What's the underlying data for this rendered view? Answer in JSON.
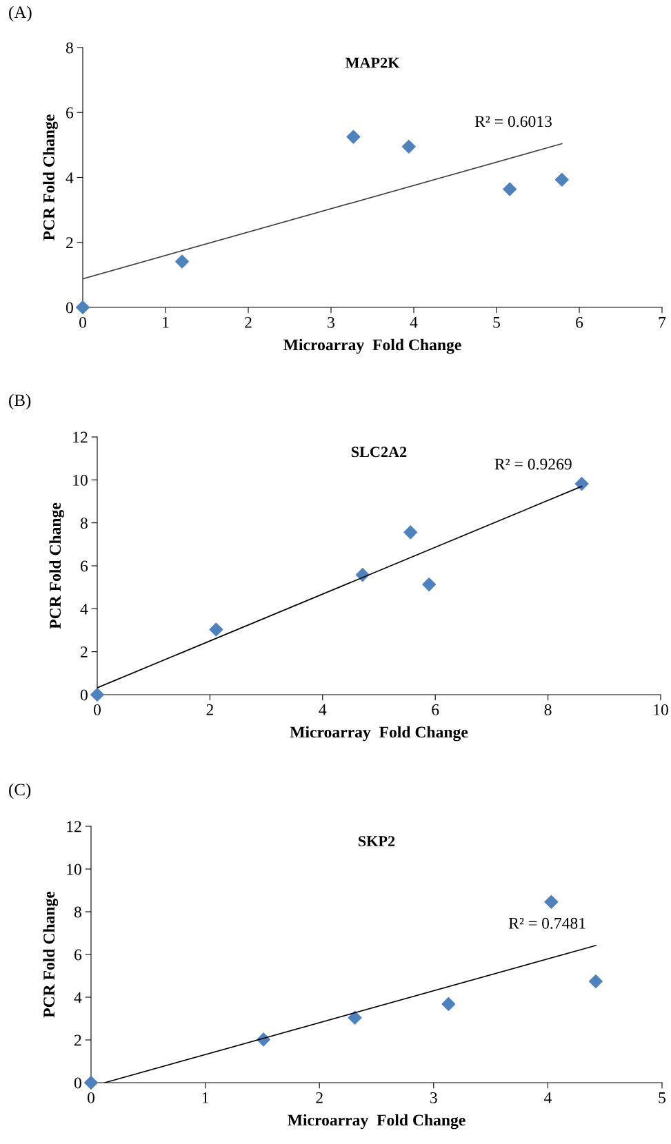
{
  "chart_data": [
    {
      "type": "scatter",
      "title": "MAP2K",
      "xlabel": "Microarray  Fold Change",
      "ylabel": "PCR Fold Change",
      "annotations": [
        "(A)",
        "R² = 0.6013"
      ],
      "xlim": [
        0,
        7
      ],
      "xticks": [
        0,
        1,
        2,
        3,
        4,
        5,
        6,
        7
      ],
      "ylim": [
        0,
        8
      ],
      "yticks": [
        0,
        2,
        4,
        6,
        8
      ],
      "grid": false,
      "legend": false,
      "series": [
        {
          "marker": "diamond",
          "color": "#4f81bd",
          "x": [
            0,
            1.2,
            3.27,
            3.94,
            5.16,
            5.79
          ],
          "values": [
            0,
            1.41,
            5.25,
            4.95,
            3.64,
            3.93
          ]
        },
        {
          "type": "line",
          "marker": "none",
          "color": "#404040",
          "x": [
            0,
            5.79
          ],
          "values": [
            0.88,
            5.04
          ]
        }
      ]
    },
    {
      "type": "scatter",
      "title": "SLC2A2",
      "xlabel": "Microarray  Fold Change",
      "ylabel": "PCR Fold Change",
      "annotations": [
        "(B)",
        "R² = 0.9269"
      ],
      "xlim": [
        0,
        10
      ],
      "xticks": [
        0,
        2,
        4,
        6,
        8,
        10
      ],
      "ylim": [
        0,
        12
      ],
      "yticks": [
        0,
        2,
        4,
        6,
        8,
        10,
        12
      ],
      "grid": false,
      "legend": false,
      "series": [
        {
          "marker": "diamond",
          "color": "#4f81bd",
          "x": [
            0,
            2.11,
            4.71,
            5.56,
            5.89,
            8.6
          ],
          "values": [
            0,
            3.03,
            5.58,
            7.56,
            5.13,
            9.82
          ]
        },
        {
          "type": "line",
          "marker": "none",
          "color": "#000000",
          "x": [
            0,
            8.6
          ],
          "values": [
            0.32,
            9.7
          ]
        }
      ]
    },
    {
      "type": "scatter",
      "title": "SKP2",
      "xlabel": "Microarray  Fold Change",
      "ylabel": "PCR Fold Change",
      "annotations": [
        "(C)",
        "R² = 0.7481"
      ],
      "xlim": [
        0,
        5
      ],
      "xticks": [
        0,
        1,
        2,
        3,
        4,
        5
      ],
      "ylim": [
        0,
        12
      ],
      "yticks": [
        0,
        2,
        4,
        6,
        8,
        10,
        12
      ],
      "grid": false,
      "legend": false,
      "series": [
        {
          "marker": "diamond",
          "color": "#4f81bd",
          "x": [
            0,
            1.51,
            2.31,
            3.13,
            4.03,
            4.42
          ],
          "values": [
            0,
            2.02,
            3.04,
            3.68,
            8.46,
            4.74
          ]
        },
        {
          "type": "line",
          "marker": "none",
          "color": "#000000",
          "x": [
            0.12,
            4.42
          ],
          "values": [
            0,
            6.42
          ]
        }
      ]
    }
  ]
}
